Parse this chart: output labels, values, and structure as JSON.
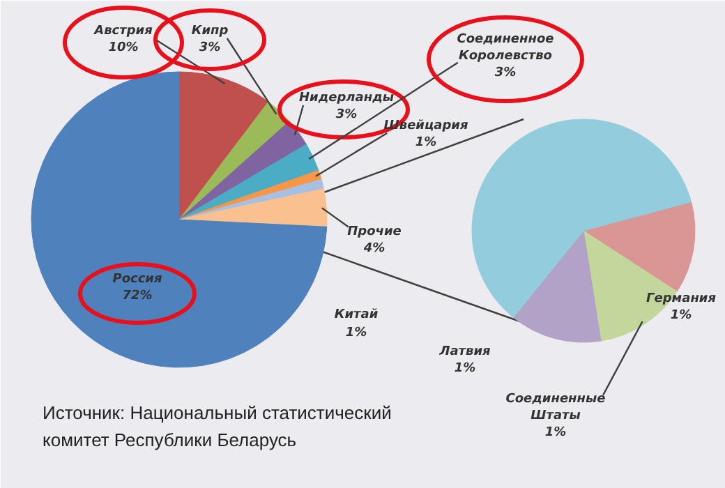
{
  "chart_data": [
    {
      "type": "pie",
      "categories": [
        "Австрия",
        "Кипр",
        "Нидерланды",
        "Соединенное\nКоролевство",
        "Швейцария",
        null,
        "Прочие",
        "Россия"
      ],
      "values": [
        10,
        3,
        3,
        3,
        1,
        1,
        4,
        72
      ],
      "value_labels": [
        "10%",
        "3%",
        "3%",
        "3%",
        "1%",
        null,
        "4%",
        "72%"
      ],
      "colors": [
        "#c0504d",
        "#9bbb59",
        "#8064a2",
        "#4bacc6",
        "#f79646",
        "#a7bfe3",
        "#fac090",
        "#4f81bd"
      ],
      "annotations": [
        "Китай\n1%",
        "Источник: Национальный статистический\nкомитет Республики Беларусь"
      ]
    },
    {
      "type": "pie",
      "categories": [
        "Германия",
        "Соединенные\nШтаты",
        "Латвия",
        null
      ],
      "values": [
        1,
        1,
        1,
        4.5
      ],
      "value_labels": [
        "1%",
        "1%",
        "1%",
        null
      ],
      "colors": [
        "#da9694",
        "#c3d69b",
        "#b3a2c7",
        "#93cddd"
      ]
    }
  ]
}
